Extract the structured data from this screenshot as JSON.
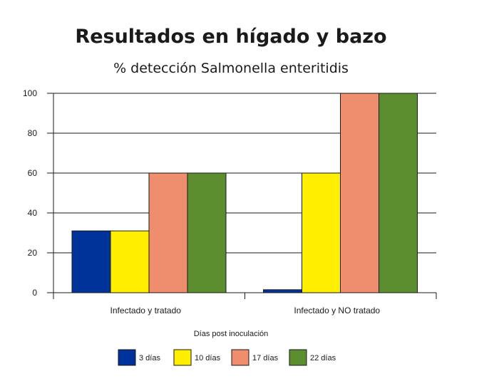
{
  "chart_data": {
    "type": "bar",
    "title": "Resultados en hígado y bazo",
    "subtitle": "% detección Salmonella enteritidis",
    "xlabel": "Días post inoculación",
    "ylabel": "",
    "ylim": [
      0,
      100
    ],
    "yticks": [
      0,
      20,
      40,
      60,
      80,
      100
    ],
    "grid": true,
    "legend_position": "bottom",
    "categories": [
      "Infectado y tratado",
      "Infectado y NO tratado"
    ],
    "series": [
      {
        "name": "3 días",
        "color": "#003399",
        "values": [
          31,
          1.5
        ]
      },
      {
        "name": "10 días",
        "color": "#ffee00",
        "values": [
          31,
          60
        ]
      },
      {
        "name": "17 días",
        "color": "#ee8e6c",
        "values": [
          60,
          100
        ]
      },
      {
        "name": "22 días",
        "color": "#5b8c2e",
        "values": [
          60,
          100
        ]
      }
    ]
  }
}
